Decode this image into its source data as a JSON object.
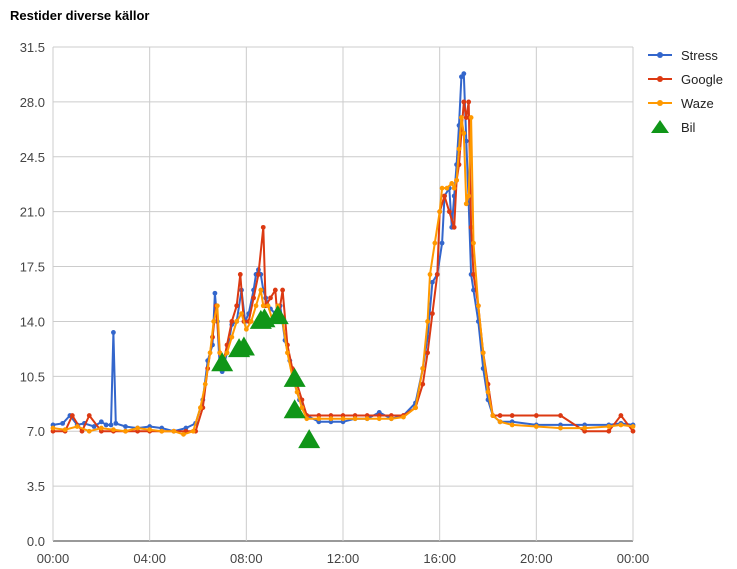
{
  "chart_data": {
    "type": "line",
    "title": "Restider diverse källor",
    "xlabel": "",
    "ylabel": "",
    "x_range_hours": [
      0,
      24
    ],
    "ylim": [
      0,
      31.5
    ],
    "grid": true,
    "legend_position": "right",
    "x_ticks": [
      {
        "hour": 0,
        "label": "00:00"
      },
      {
        "hour": 4,
        "label": "04:00"
      },
      {
        "hour": 8,
        "label": "08:00"
      },
      {
        "hour": 12,
        "label": "12:00"
      },
      {
        "hour": 16,
        "label": "16:00"
      },
      {
        "hour": 20,
        "label": "20:00"
      },
      {
        "hour": 24,
        "label": "00:00"
      }
    ],
    "y_ticks": [
      {
        "value": 0,
        "label": "0.0"
      },
      {
        "value": 3.5,
        "label": "3.5"
      },
      {
        "value": 7,
        "label": "7.0"
      },
      {
        "value": 10.5,
        "label": "10.5"
      },
      {
        "value": 14,
        "label": "14.0"
      },
      {
        "value": 17.5,
        "label": "17.5"
      },
      {
        "value": 21,
        "label": "21.0"
      },
      {
        "value": 24.5,
        "label": "24.5"
      },
      {
        "value": 28,
        "label": "28.0"
      },
      {
        "value": 31.5,
        "label": "31.5"
      }
    ],
    "series": [
      {
        "name": "Stress",
        "color": "#3366cc",
        "marker": "circle",
        "points": [
          [
            0,
            7.4
          ],
          [
            0.4,
            7.5
          ],
          [
            0.7,
            8.0
          ],
          [
            1.0,
            7.4
          ],
          [
            1.3,
            7.5
          ],
          [
            1.7,
            7.3
          ],
          [
            2.0,
            7.6
          ],
          [
            2.2,
            7.4
          ],
          [
            2.4,
            7.4
          ],
          [
            2.5,
            13.3
          ],
          [
            2.6,
            7.5
          ],
          [
            3.0,
            7.3
          ],
          [
            3.5,
            7.2
          ],
          [
            4.0,
            7.3
          ],
          [
            4.5,
            7.2
          ],
          [
            5.0,
            7.0
          ],
          [
            5.5,
            7.2
          ],
          [
            5.9,
            7.5
          ],
          [
            6.2,
            9.0
          ],
          [
            6.4,
            11.5
          ],
          [
            6.6,
            12.5
          ],
          [
            6.7,
            15.8
          ],
          [
            6.8,
            14.0
          ],
          [
            6.9,
            11.0
          ],
          [
            7.0,
            10.8
          ],
          [
            7.2,
            12.0
          ],
          [
            7.4,
            13.8
          ],
          [
            7.6,
            14.0
          ],
          [
            7.8,
            16.0
          ],
          [
            7.95,
            14.0
          ],
          [
            8.1,
            14.5
          ],
          [
            8.3,
            16.0
          ],
          [
            8.4,
            17.0
          ],
          [
            8.5,
            17.3
          ],
          [
            8.6,
            17.0
          ],
          [
            8.7,
            16.0
          ],
          [
            8.8,
            15.5
          ],
          [
            9.0,
            14.8
          ],
          [
            9.2,
            14.5
          ],
          [
            9.4,
            15.0
          ],
          [
            9.6,
            12.8
          ],
          [
            9.8,
            11.5
          ],
          [
            10.0,
            10.0
          ],
          [
            10.2,
            9.0
          ],
          [
            10.5,
            8.0
          ],
          [
            11.0,
            7.6
          ],
          [
            11.5,
            7.6
          ],
          [
            12.0,
            7.6
          ],
          [
            12.5,
            7.8
          ],
          [
            13.0,
            7.8
          ],
          [
            13.5,
            8.2
          ],
          [
            14.0,
            7.8
          ],
          [
            14.5,
            8.0
          ],
          [
            15.0,
            8.8
          ],
          [
            15.3,
            11.0
          ],
          [
            15.5,
            13.0
          ],
          [
            15.7,
            16.5
          ],
          [
            15.9,
            17.0
          ],
          [
            16.1,
            19.0
          ],
          [
            16.2,
            22.0
          ],
          [
            16.4,
            22.5
          ],
          [
            16.5,
            20.0
          ],
          [
            16.6,
            22.0
          ],
          [
            16.7,
            24.0
          ],
          [
            16.8,
            26.5
          ],
          [
            16.9,
            29.6
          ],
          [
            17.0,
            29.8
          ],
          [
            17.1,
            25.5
          ],
          [
            17.2,
            21.5
          ],
          [
            17.3,
            17.0
          ],
          [
            17.4,
            16.0
          ],
          [
            17.6,
            14.0
          ],
          [
            17.8,
            11.0
          ],
          [
            18.0,
            9.0
          ],
          [
            18.2,
            8.0
          ],
          [
            18.5,
            7.6
          ],
          [
            19.0,
            7.6
          ],
          [
            20.0,
            7.4
          ],
          [
            21.0,
            7.4
          ],
          [
            22.0,
            7.4
          ],
          [
            23.0,
            7.4
          ],
          [
            23.5,
            7.5
          ],
          [
            24.0,
            7.4
          ]
        ]
      },
      {
        "name": "Google",
        "color": "#dc3912",
        "marker": "circle",
        "points": [
          [
            0,
            7.0
          ],
          [
            0.5,
            7.0
          ],
          [
            0.8,
            8.0
          ],
          [
            1.2,
            7.0
          ],
          [
            1.5,
            8.0
          ],
          [
            2.0,
            7.0
          ],
          [
            2.5,
            7.0
          ],
          [
            3.0,
            7.0
          ],
          [
            3.5,
            7.0
          ],
          [
            4.0,
            7.0
          ],
          [
            4.5,
            7.0
          ],
          [
            5.0,
            7.0
          ],
          [
            5.5,
            7.0
          ],
          [
            5.9,
            7.0
          ],
          [
            6.2,
            8.5
          ],
          [
            6.4,
            11.0
          ],
          [
            6.6,
            13.0
          ],
          [
            6.75,
            15.0
          ],
          [
            6.9,
            12.0
          ],
          [
            7.0,
            11.0
          ],
          [
            7.2,
            12.5
          ],
          [
            7.4,
            14.0
          ],
          [
            7.6,
            15.0
          ],
          [
            7.75,
            17.0
          ],
          [
            7.9,
            14.0
          ],
          [
            8.1,
            14.0
          ],
          [
            8.3,
            15.5
          ],
          [
            8.5,
            17.0
          ],
          [
            8.7,
            20.0
          ],
          [
            8.8,
            15.0
          ],
          [
            9.0,
            15.5
          ],
          [
            9.2,
            16.0
          ],
          [
            9.3,
            14.0
          ],
          [
            9.5,
            16.0
          ],
          [
            9.7,
            12.5
          ],
          [
            9.9,
            11.0
          ],
          [
            10.1,
            10.0
          ],
          [
            10.3,
            9.0
          ],
          [
            10.5,
            8.0
          ],
          [
            11.0,
            8.0
          ],
          [
            11.5,
            8.0
          ],
          [
            12.0,
            8.0
          ],
          [
            12.5,
            8.0
          ],
          [
            13.0,
            8.0
          ],
          [
            13.5,
            8.0
          ],
          [
            14.0,
            8.0
          ],
          [
            14.5,
            8.0
          ],
          [
            15.0,
            8.5
          ],
          [
            15.3,
            10.0
          ],
          [
            15.5,
            12.0
          ],
          [
            15.7,
            14.5
          ],
          [
            15.9,
            17.0
          ],
          [
            16.0,
            21.0
          ],
          [
            16.2,
            22.0
          ],
          [
            16.4,
            21.0
          ],
          [
            16.6,
            20.0
          ],
          [
            16.7,
            23.0
          ],
          [
            16.8,
            24.0
          ],
          [
            16.9,
            26.0
          ],
          [
            17.0,
            28.0
          ],
          [
            17.1,
            27.0
          ],
          [
            17.2,
            28.0
          ],
          [
            17.3,
            20.0
          ],
          [
            17.4,
            17.0
          ],
          [
            17.6,
            15.0
          ],
          [
            17.8,
            12.0
          ],
          [
            18.0,
            10.0
          ],
          [
            18.2,
            8.0
          ],
          [
            18.5,
            8.0
          ],
          [
            19.0,
            8.0
          ],
          [
            20.0,
            8.0
          ],
          [
            21.0,
            8.0
          ],
          [
            22.0,
            7.0
          ],
          [
            23.0,
            7.0
          ],
          [
            23.5,
            8.0
          ],
          [
            24.0,
            7.0
          ]
        ]
      },
      {
        "name": "Waze",
        "color": "#ff9900",
        "marker": "circle",
        "points": [
          [
            0,
            7.2
          ],
          [
            0.5,
            7.1
          ],
          [
            1.0,
            7.3
          ],
          [
            1.5,
            7.0
          ],
          [
            2.0,
            7.2
          ],
          [
            2.5,
            7.1
          ],
          [
            3.0,
            7.0
          ],
          [
            3.5,
            7.2
          ],
          [
            4.0,
            7.1
          ],
          [
            4.5,
            7.0
          ],
          [
            5.0,
            7.0
          ],
          [
            5.4,
            6.8
          ],
          [
            5.8,
            7.0
          ],
          [
            6.1,
            8.5
          ],
          [
            6.3,
            10.0
          ],
          [
            6.5,
            12.0
          ],
          [
            6.65,
            14.0
          ],
          [
            6.8,
            15.0
          ],
          [
            6.9,
            12.0
          ],
          [
            7.0,
            11.5
          ],
          [
            7.2,
            12.0
          ],
          [
            7.4,
            13.0
          ],
          [
            7.6,
            14.0
          ],
          [
            7.8,
            14.5
          ],
          [
            8.0,
            13.5
          ],
          [
            8.2,
            14.0
          ],
          [
            8.4,
            15.0
          ],
          [
            8.6,
            16.0
          ],
          [
            8.7,
            15.0
          ],
          [
            8.9,
            15.0
          ],
          [
            9.1,
            14.0
          ],
          [
            9.3,
            15.0
          ],
          [
            9.5,
            14.0
          ],
          [
            9.7,
            12.0
          ],
          [
            9.9,
            10.5
          ],
          [
            10.1,
            9.5
          ],
          [
            10.3,
            8.5
          ],
          [
            10.5,
            7.8
          ],
          [
            11.0,
            7.8
          ],
          [
            11.5,
            7.8
          ],
          [
            12.0,
            7.8
          ],
          [
            12.5,
            7.8
          ],
          [
            13.0,
            7.8
          ],
          [
            13.5,
            7.8
          ],
          [
            14.0,
            7.8
          ],
          [
            14.5,
            7.9
          ],
          [
            15.0,
            8.5
          ],
          [
            15.3,
            11.0
          ],
          [
            15.5,
            14.0
          ],
          [
            15.6,
            17.0
          ],
          [
            15.8,
            19.0
          ],
          [
            16.0,
            21.0
          ],
          [
            16.1,
            22.5
          ],
          [
            16.3,
            22.5
          ],
          [
            16.5,
            22.8
          ],
          [
            16.6,
            22.5
          ],
          [
            16.7,
            23.0
          ],
          [
            16.8,
            25.0
          ],
          [
            16.9,
            27.0
          ],
          [
            17.0,
            26.0
          ],
          [
            17.1,
            21.5
          ],
          [
            17.2,
            22.0
          ],
          [
            17.3,
            27.0
          ],
          [
            17.4,
            19.0
          ],
          [
            17.6,
            15.0
          ],
          [
            17.8,
            12.0
          ],
          [
            18.0,
            9.5
          ],
          [
            18.2,
            8.0
          ],
          [
            18.5,
            7.6
          ],
          [
            19.0,
            7.4
          ],
          [
            20.0,
            7.3
          ],
          [
            21.0,
            7.2
          ],
          [
            22.0,
            7.2
          ],
          [
            23.0,
            7.3
          ],
          [
            23.5,
            7.4
          ],
          [
            24.0,
            7.3
          ]
        ]
      },
      {
        "name": "Bil",
        "color": "#109618",
        "marker": "triangle",
        "points": [
          [
            7.0,
            11.4
          ],
          [
            7.7,
            12.3
          ],
          [
            7.9,
            12.4
          ],
          [
            8.6,
            14.1
          ],
          [
            8.75,
            14.2
          ],
          [
            9.3,
            14.4
          ],
          [
            10.0,
            10.4
          ],
          [
            10.0,
            8.4
          ],
          [
            10.6,
            6.5
          ]
        ]
      }
    ]
  }
}
